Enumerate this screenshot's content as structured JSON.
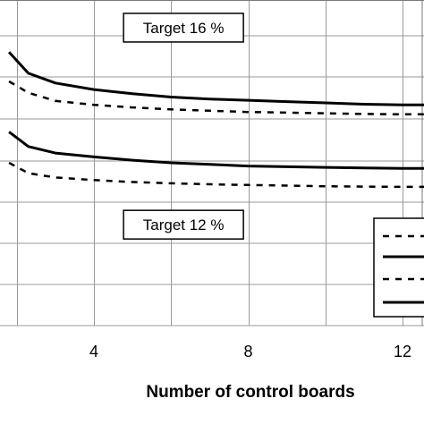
{
  "chart_data": {
    "type": "line",
    "xlabel": "Number of control boards",
    "x_ticks": [
      4,
      8,
      12
    ],
    "xlim": [
      1.8,
      13.0
    ],
    "ylim": [
      0,
      1
    ],
    "grid": true,
    "legend_placement": "bottom-right",
    "y_units": "relative (y-axis tick labels not visible)",
    "annotations": [
      {
        "text": "Target 16 %",
        "x": 5.0,
        "y": 0.915
      },
      {
        "text": "Target 12 %",
        "x": 5.0,
        "y": 0.31
      }
    ],
    "series": [
      {
        "style": "solid",
        "x": [
          1.8,
          2.3,
          3.0,
          4.0,
          5.0,
          6.0,
          7.0,
          8.0,
          9.0,
          10.0,
          11.0,
          12.0,
          13.0
        ],
        "y": [
          0.84,
          0.775,
          0.745,
          0.725,
          0.712,
          0.702,
          0.696,
          0.692,
          0.688,
          0.684,
          0.68,
          0.678,
          0.678
        ]
      },
      {
        "style": "dashed",
        "x": [
          1.8,
          2.3,
          3.0,
          4.0,
          5.0,
          6.0,
          7.0,
          8.0,
          9.0,
          10.0,
          11.0,
          12.0,
          13.0
        ],
        "y": [
          0.75,
          0.715,
          0.69,
          0.678,
          0.67,
          0.664,
          0.66,
          0.656,
          0.654,
          0.652,
          0.65,
          0.649,
          0.649
        ]
      },
      {
        "style": "solid",
        "x": [
          1.8,
          2.3,
          3.0,
          4.0,
          5.0,
          6.0,
          7.0,
          8.0,
          9.0,
          10.0,
          11.0,
          12.0,
          13.0
        ],
        "y": [
          0.595,
          0.55,
          0.53,
          0.518,
          0.508,
          0.5,
          0.495,
          0.49,
          0.488,
          0.486,
          0.484,
          0.483,
          0.483
        ]
      },
      {
        "style": "dashed",
        "x": [
          1.8,
          2.3,
          3.0,
          4.0,
          5.0,
          6.0,
          7.0,
          8.0,
          9.0,
          10.0,
          11.0,
          12.0,
          13.0
        ],
        "y": [
          0.5,
          0.468,
          0.455,
          0.447,
          0.441,
          0.437,
          0.434,
          0.432,
          0.43,
          0.428,
          0.427,
          0.426,
          0.426
        ]
      }
    ],
    "legend_entries": [
      {
        "style": "dashed",
        "label": ""
      },
      {
        "style": "solid",
        "label": ""
      },
      {
        "style": "dashed",
        "label": ""
      },
      {
        "style": "solid",
        "label": ""
      }
    ]
  }
}
